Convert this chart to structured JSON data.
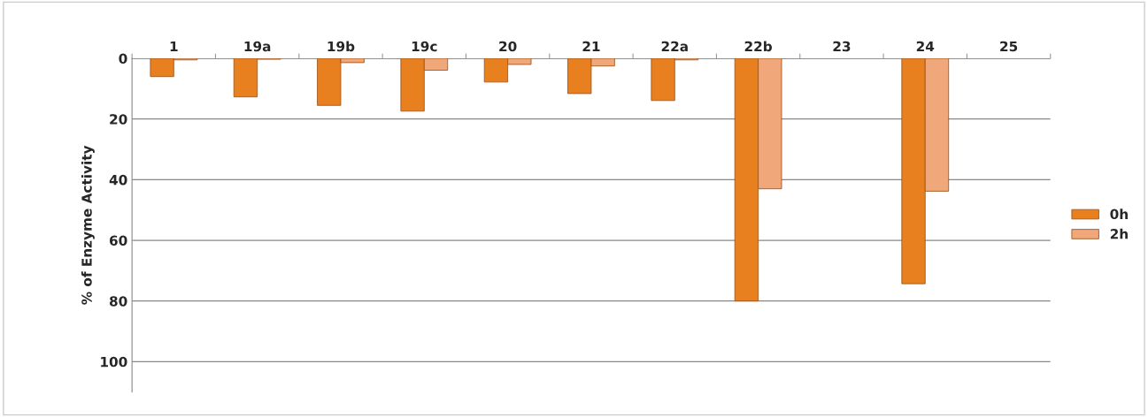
{
  "chart_data": {
    "type": "bar",
    "ylabel": "% of Enzyme Activity",
    "categories": [
      "1",
      "19a",
      "19b",
      "19c",
      "20",
      "21",
      "22a",
      "22b",
      "23",
      "24",
      "25"
    ],
    "series": [
      {
        "name": "0h",
        "color": "#e8801f",
        "values": [
          6,
          12.7,
          15.5,
          17.4,
          7.8,
          11.6,
          13.9,
          80,
          null,
          74.3,
          null
        ]
      },
      {
        "name": "2h",
        "color": "#f0a77a",
        "values": [
          0.5,
          0.3,
          1.4,
          3.9,
          2,
          2.5,
          0.5,
          43,
          null,
          43.8,
          null
        ]
      }
    ],
    "ylim": [
      110,
      0
    ],
    "yticks": [
      0,
      20,
      40,
      60,
      80,
      100
    ],
    "grid": "y",
    "legend": "right"
  }
}
